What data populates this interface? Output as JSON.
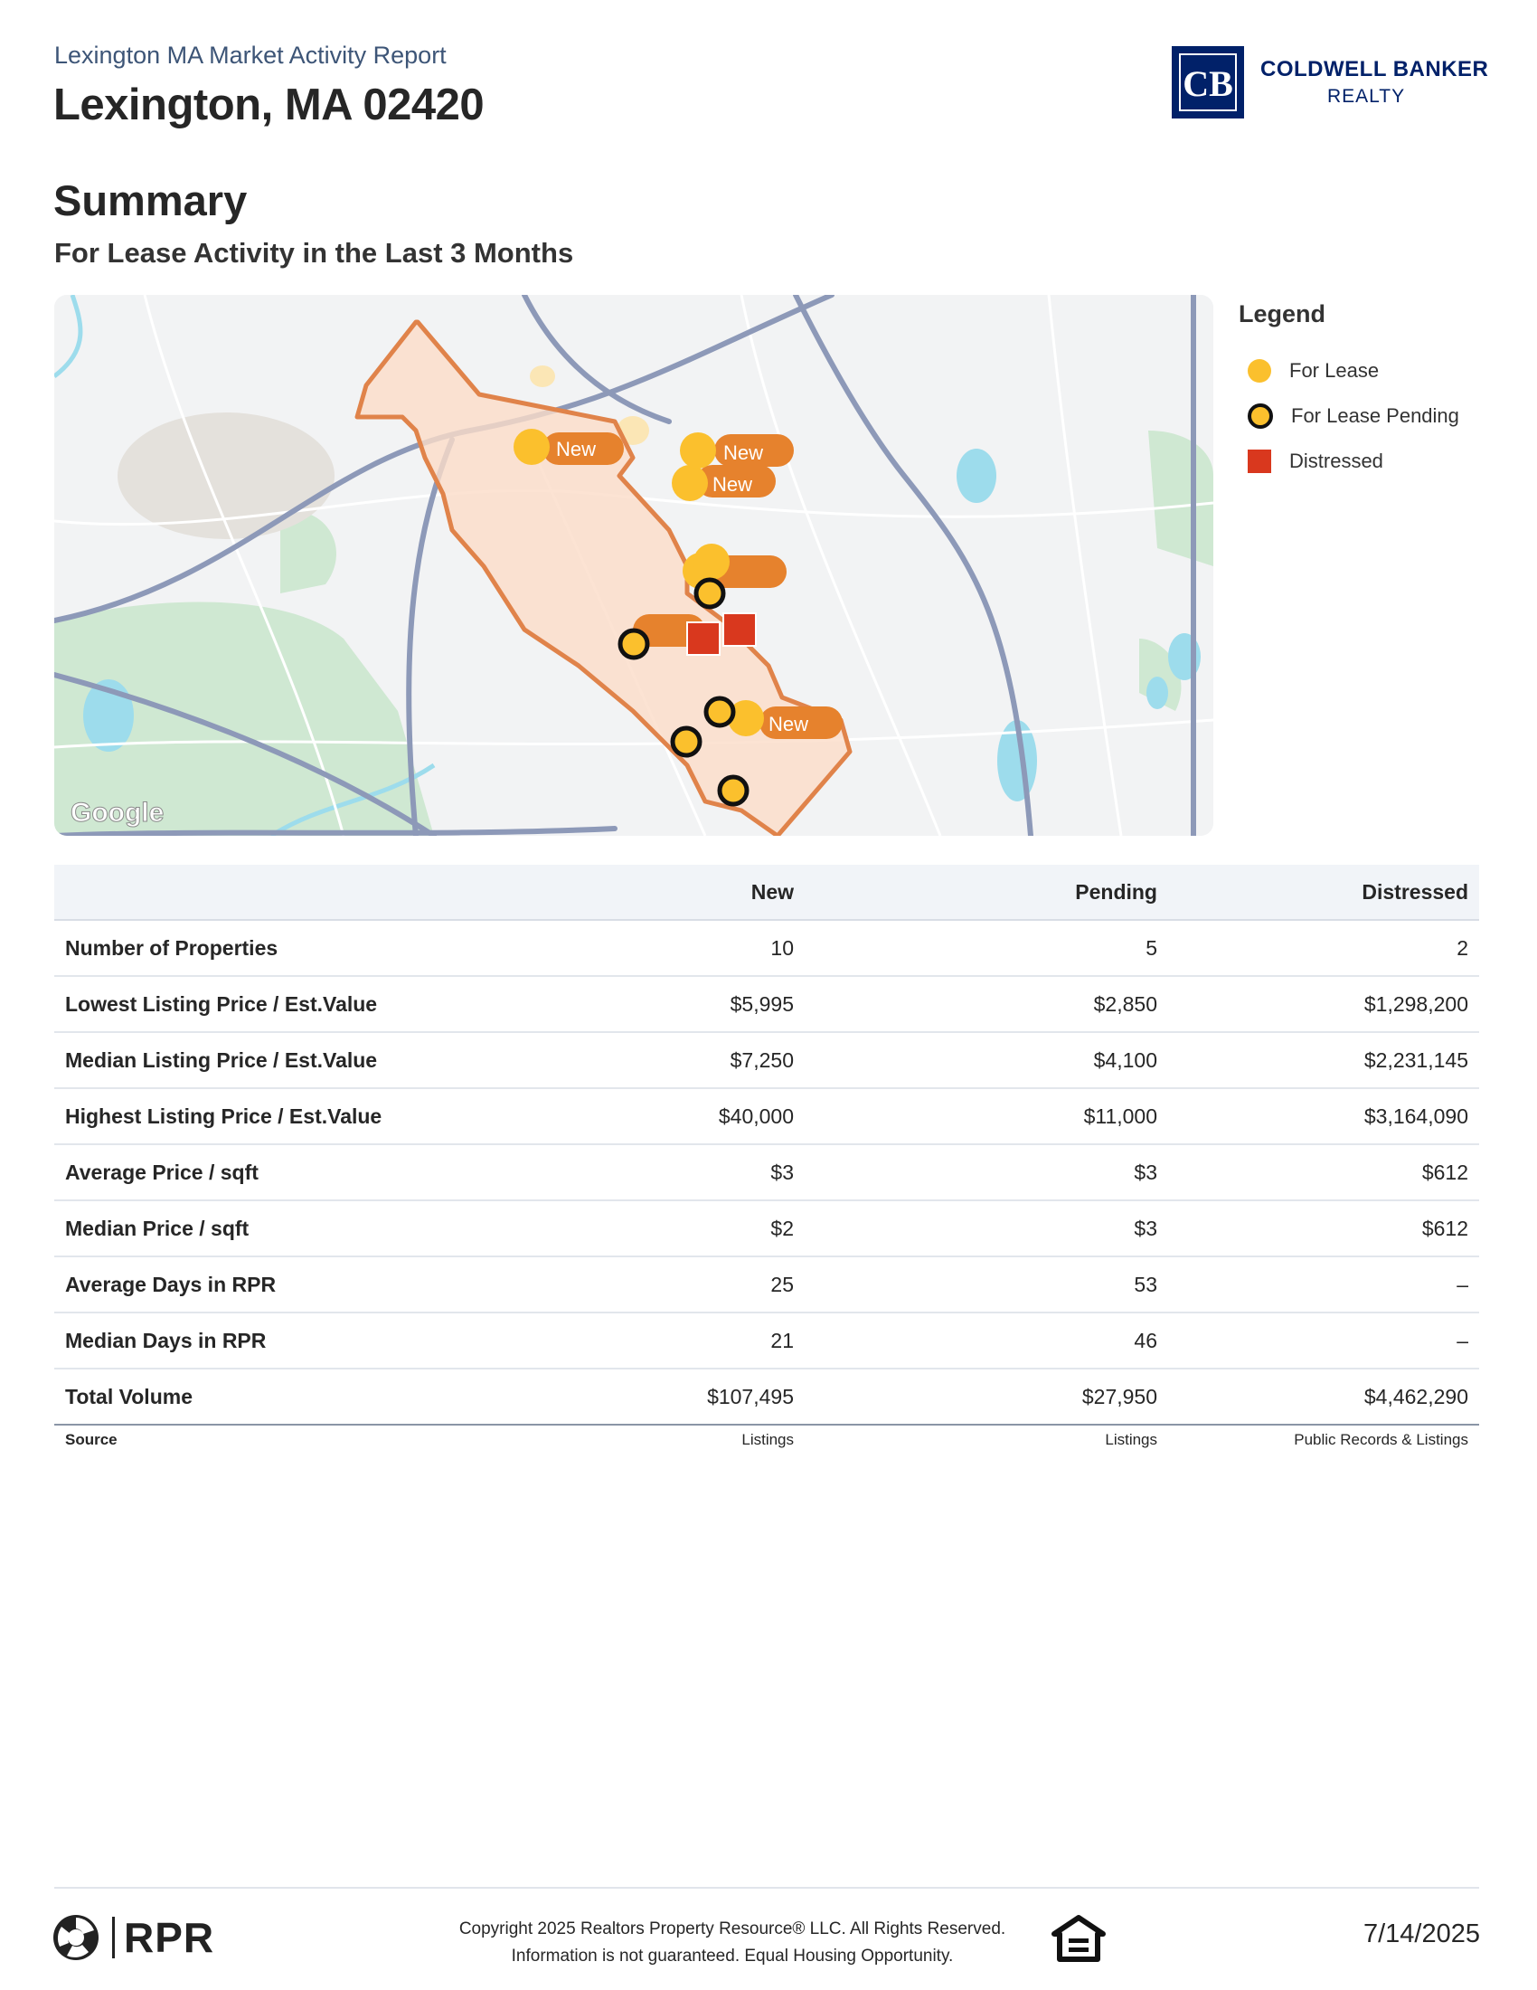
{
  "header": {
    "report_label": "Lexington MA Market Activity Report",
    "location_title": "Lexington, MA 02420",
    "brand_line1": "COLDWELL BANKER",
    "brand_line2": "REALTY",
    "brand_monogram": "CB"
  },
  "summary": {
    "title": "Summary",
    "subtitle": "For Lease Activity in the Last 3 Months"
  },
  "map": {
    "attribution": "Google",
    "marker_label": "New",
    "colors": {
      "for_lease": "#fbc02d",
      "new_tag": "#e6822d",
      "distressed": "#d9381e",
      "boundary": "#e0834a"
    }
  },
  "legend": {
    "title": "Legend",
    "items": [
      {
        "label": "For Lease",
        "icon": "yellow-circle-icon"
      },
      {
        "label": "For Lease Pending",
        "icon": "outlined-yellow-circle-icon"
      },
      {
        "label": "Distressed",
        "icon": "red-square-icon"
      }
    ]
  },
  "table": {
    "columns": [
      "",
      "New",
      "Pending",
      "Distressed"
    ],
    "rows": [
      {
        "label": "Number of Properties",
        "new": "10",
        "pending": "5",
        "distressed": "2"
      },
      {
        "label": "Lowest Listing Price / Est.Value",
        "new": "$5,995",
        "pending": "$2,850",
        "distressed": "$1,298,200"
      },
      {
        "label": "Median Listing Price / Est.Value",
        "new": "$7,250",
        "pending": "$4,100",
        "distressed": "$2,231,145"
      },
      {
        "label": "Highest Listing Price / Est.Value",
        "new": "$40,000",
        "pending": "$11,000",
        "distressed": "$3,164,090"
      },
      {
        "label": "Average Price / sqft",
        "new": "$3",
        "pending": "$3",
        "distressed": "$612"
      },
      {
        "label": "Median Price / sqft",
        "new": "$2",
        "pending": "$3",
        "distressed": "$612"
      },
      {
        "label": "Average Days in RPR",
        "new": "25",
        "pending": "53",
        "distressed": "–"
      },
      {
        "label": "Median Days in RPR",
        "new": "21",
        "pending": "46",
        "distressed": "–"
      },
      {
        "label": "Total Volume",
        "new": "$107,495",
        "pending": "$27,950",
        "distressed": "$4,462,290"
      }
    ],
    "source": {
      "label": "Source",
      "new": "Listings",
      "pending": "Listings",
      "distressed": "Public Records & Listings"
    }
  },
  "footer": {
    "rpr_word": "RPR",
    "copyright_line1": "Copyright 2025 Realtors Property Resource® LLC. All Rights Reserved.",
    "copyright_line2": "Information is not guaranteed. Equal Housing Opportunity.",
    "date": "7/14/2025"
  }
}
